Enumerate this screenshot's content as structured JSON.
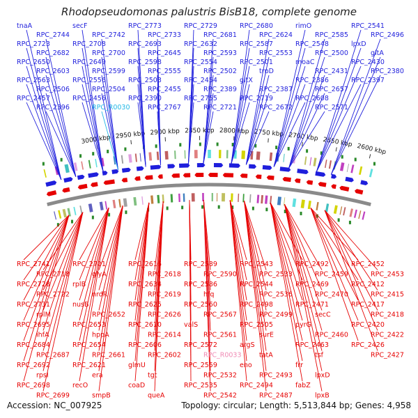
{
  "title": "Rhodopseudomonas palustris BisB18, complete genome",
  "footer": {
    "accession_label": "Accession: NC_007925",
    "summary_label": "Topology: circular; Length: 5,513,844 bp; Genes: 4,958"
  },
  "colors": {
    "forward": "#1f1fdc",
    "reverse": "#e60000",
    "rna_forward": "#22b8e6",
    "rna_reverse": "#f08ab4",
    "backbone": "#8a8a8a"
  },
  "ticks": [
    "3000 kbp",
    "2950 kbp",
    "2900 kbp",
    "2850 kbp",
    "2800 kbp",
    "2750 kbp",
    "2700 kbp",
    "2650 kbp",
    "2600 kbp"
  ],
  "forward_genes": [
    "tnaA",
    "RPC_2744",
    "RPC_2723",
    "RPC_2682",
    "RPC_2650",
    "RPC_2603",
    "RPC_2563",
    "RPC_2506",
    "RPC_2457",
    "RPC_2396",
    "secF",
    "RPC_2742",
    "RPC_2708",
    "RPC_2700",
    "RPC_2649",
    "RPC_2599",
    "RPC_2556",
    "RPC_2504",
    "RPC_2456",
    "RPC_R0030",
    "RPC_2773",
    "RPC_2733",
    "RPC_2693",
    "RPC_2645",
    "RPC_2598",
    "RPC_2555",
    "RPC_2503",
    "RPC_2455",
    "RPC_2390",
    "RPC_2767",
    "RPC_2729",
    "RPC_2681",
    "RPC_2632",
    "RPC_2593",
    "RPC_2554",
    "RPC_2502",
    "RPC_2454",
    "RPC_2389",
    "RPC_2755",
    "RPC_2721",
    "RPC_2680",
    "RPC_2624",
    "RPC_2587",
    "RPC_2553",
    "RPC_2501",
    "trpD",
    "gltX",
    "RPC_2387",
    "RPC_2719",
    "RPC_2672",
    "rimO",
    "RPC_2585",
    "RPC_2548",
    "RPC_2500",
    "moaC",
    "RPC_2431",
    "RPC_2386",
    "RPC_2657",
    "RPC_2608",
    "RPC_2571",
    "RPC_2541",
    "RPC_2496",
    "lpxD",
    "gltA",
    "RPC_2430",
    "RPC_2380",
    "RPC_2397"
  ],
  "reverse_genes": [
    "RPC_2741",
    "RPC_2718",
    "RPC_2728",
    "RPC_2722",
    "RPC_2731",
    "rplM",
    "RPC_2695",
    "ihfA",
    "RPC_2684",
    "RPC_2687",
    "RPC_2692",
    "rpsI",
    "RPC_2698",
    "RPC_2699",
    "RPC_2701",
    "glyA",
    "rplB",
    "nrdR",
    "nusB",
    "RPC_2652",
    "RPC_2653",
    "hppA",
    "RPC_2654",
    "RPC_2661",
    "RPC_2621",
    "era",
    "recO",
    "smpB",
    "RPC_2616",
    "RPC_2618",
    "RPC_2634",
    "RPC_2619",
    "RPC_2625",
    "RPC_2626",
    "RPC_2610",
    "RPC_2614",
    "RPC_2606",
    "RPC_2602",
    "glmU",
    "tgt",
    "coaD",
    "queA",
    "RPC_2589",
    "RPC_2590",
    "RPC_2586",
    "hfq",
    "RPC_2560",
    "RPC_2567",
    "valS",
    "RPC_2561",
    "RPC_2572",
    "RPC_R0033",
    "RPC_2559",
    "RPC_2532",
    "RPC_2535",
    "RPC_2542",
    "RPC_2543",
    "RPC_2533",
    "RPC_2544",
    "RPC_2536",
    "RPC_2498",
    "RPC_2499",
    "RPC_2505",
    "surE",
    "argS",
    "tatA",
    "eno",
    "RPC_2493",
    "RPC_2494",
    "RPC_2487",
    "RPC_2492",
    "RPC_2459",
    "RPC_2469",
    "RPC_2470",
    "RPC_2471",
    "secC",
    "pyrG",
    "RPC_2460",
    "RPC_2463",
    "tsf",
    "frr",
    "lpxD",
    "fabZ",
    "lpxB",
    "RPC_2452",
    "RPC_2453",
    "RPC_2412",
    "RPC_2415",
    "RPC_2417",
    "RPC_2418",
    "RPC_2420",
    "RPC_2422",
    "RPC_2426",
    "RPC_2427"
  ]
}
